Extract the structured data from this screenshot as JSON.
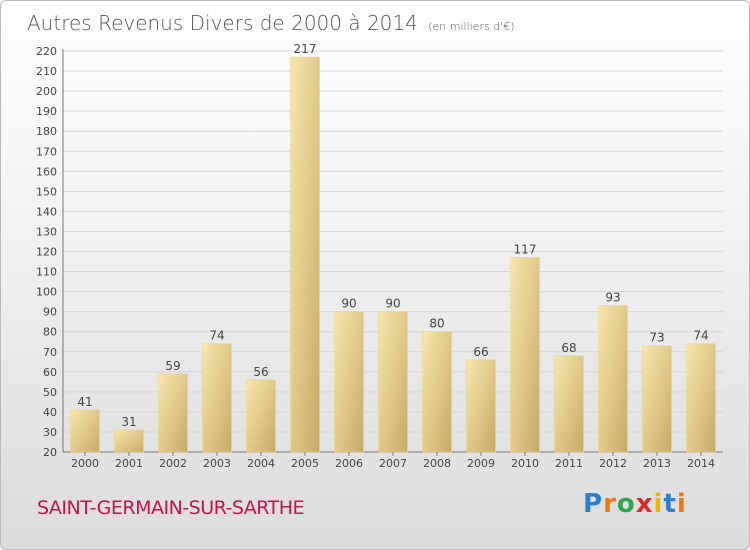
{
  "header": {
    "title": "Autres Revenus Divers de 2000 à 2014",
    "subtitle": "(en milliers d'€)"
  },
  "footer": {
    "commune": "SAINT-GERMAIN-SUR-SARTHE",
    "logo": "Proxiti"
  },
  "colors": {
    "bar_light": "#f7e3a6",
    "bar_dark": "#c9ae6a",
    "grid": "#d6d6d6",
    "commune_text": "#c0144c"
  },
  "chart_data": {
    "type": "bar",
    "title": "Autres Revenus Divers de 2000 à 2014",
    "subtitle": "(en milliers d'€)",
    "categories": [
      "2000",
      "2001",
      "2002",
      "2003",
      "2004",
      "2005",
      "2006",
      "2007",
      "2008",
      "2009",
      "2010",
      "2011",
      "2012",
      "2013",
      "2014"
    ],
    "values": [
      41,
      31,
      59,
      74,
      56,
      217,
      90,
      90,
      80,
      66,
      117,
      68,
      93,
      73,
      74
    ],
    "ylim": [
      20,
      220
    ],
    "ytick_step": 10,
    "grid": true,
    "xlabel": "",
    "ylabel": ""
  }
}
